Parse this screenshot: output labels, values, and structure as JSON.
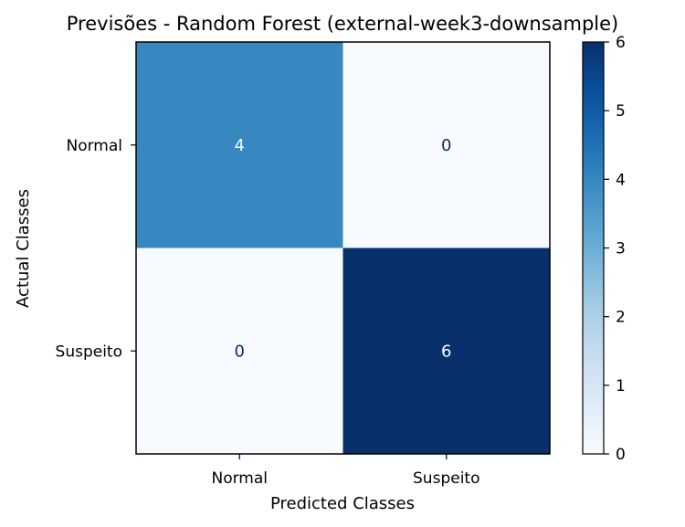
{
  "chart_data": {
    "type": "heatmap",
    "title": "Previsões - Random Forest (external-week3-downsample)",
    "xlabel": "Predicted Classes",
    "ylabel": "Actual Classes",
    "x_categories": [
      "Normal",
      "Suspeito"
    ],
    "y_categories": [
      "Normal",
      "Suspeito"
    ],
    "values": [
      [
        4,
        0
      ],
      [
        0,
        6
      ]
    ],
    "colormap": "Blues",
    "colorbar": {
      "range": [
        0,
        6
      ],
      "ticks": [
        "0",
        "1",
        "2",
        "3",
        "4",
        "5",
        "6"
      ]
    },
    "grid": false,
    "legend": "colorbar at right"
  }
}
